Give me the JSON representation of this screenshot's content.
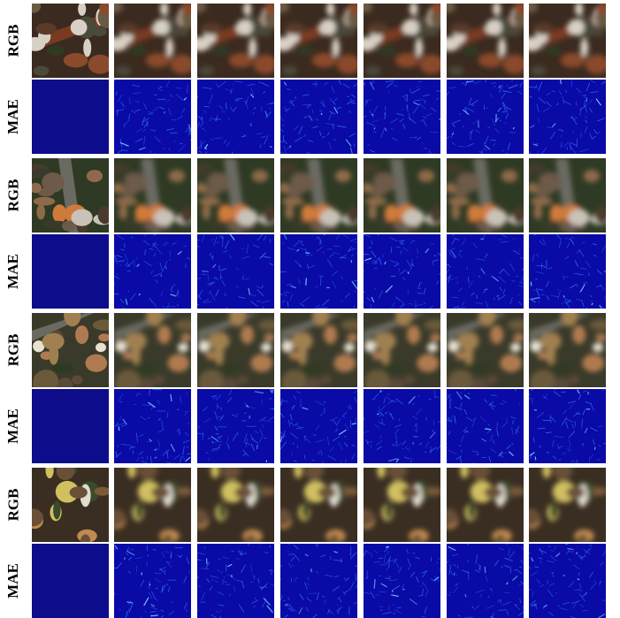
{
  "row_labels": [
    "RGB",
    "MAE"
  ],
  "groups": [
    {
      "rgb_label": "RGB",
      "mae_label": "MAE"
    },
    {
      "rgb_label": "RGB",
      "mae_label": "MAE"
    },
    {
      "rgb_label": "RGB",
      "mae_label": "MAE"
    },
    {
      "rgb_label": "RGB",
      "mae_label": "MAE"
    }
  ],
  "columns": 7,
  "colors": {
    "mae_background": "#0a0aa6",
    "mae_ground_truth": "#0d0d8c",
    "mae_highlight": "#2f6bff",
    "mae_peak": "#7ad0ff"
  }
}
